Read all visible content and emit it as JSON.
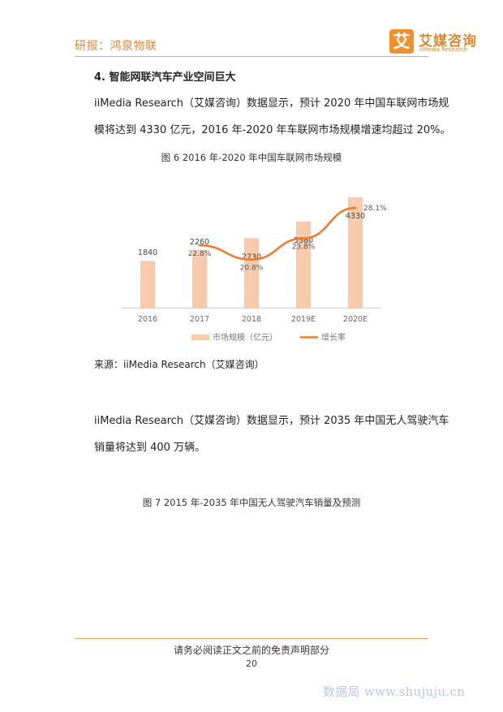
{
  "header": {
    "title": "研报：鸿泉物联",
    "logo_mark": "艾",
    "logo_cn": "艾媒咨询",
    "logo_en": "iiMedia Research",
    "accent_color": "#f0912f"
  },
  "section_heading": "4. 智能网联汽车产业空间巨大",
  "para1": {
    "line1": "iiMedia Research（艾媒咨询）数据显示，预计 2020 年中国车联网市场规",
    "line2": "模将达到 4330 亿元，2016 年-2020 年车联网市场规模增速均超过 20%。"
  },
  "figure6_caption": "图 6    2016 年-2020 年中国车联网市场规模",
  "chart_data": {
    "type": "bar",
    "categories": [
      "2016",
      "2017",
      "2018",
      "2019E",
      "2020E"
    ],
    "series": [
      {
        "name": "市场规模（亿元）",
        "type": "bar",
        "values": [
          1840,
          2260,
          2730,
          3380,
          4330
        ],
        "labels": [
          "1840",
          "2260",
          "2730",
          "3380",
          "4330"
        ],
        "color": "#f8cbad"
      },
      {
        "name": "增长率",
        "type": "line",
        "values": [
          null,
          22.8,
          20.8,
          23.8,
          28.1
        ],
        "labels": [
          "",
          "22.8%",
          "20.8%",
          "23.8%",
          "28.1%"
        ],
        "color": "#ed7d31"
      }
    ],
    "ylim": [
      0,
      5000
    ],
    "y2lim": [
      14,
      32
    ],
    "grid": false,
    "legend_position": "bottom"
  },
  "source": "来源：iiMedia Research（艾媒咨询）",
  "para2": {
    "line1": "iiMedia Research（艾媒咨询）数据显示，预计 2035 年中国无人驾驶汽车",
    "line2": "销量将达到 400 万辆。"
  },
  "figure7_caption": "图 7    2015 年-2035 年中国无人驾驶汽车销量及预测",
  "footer": {
    "disclaimer": "请务必阅读正文之前的免责声明部分",
    "page_number": "20"
  },
  "watermark": "数据局  www.shujuju.cn"
}
